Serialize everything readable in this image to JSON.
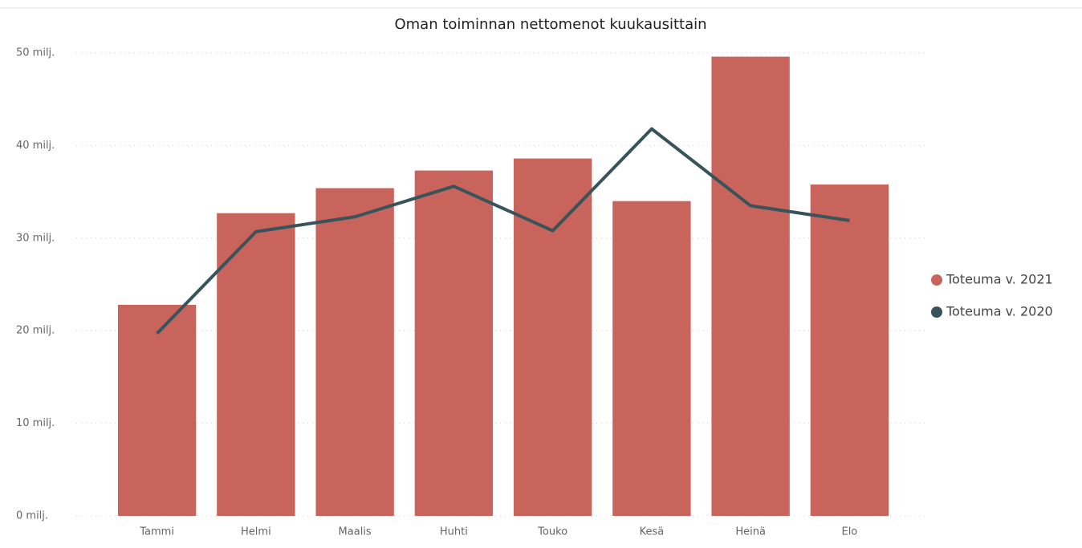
{
  "chart_data": {
    "type": "bar",
    "title": "Oman toiminnan nettomenot kuukausittain",
    "categories": [
      "Tammi",
      "Helmi",
      "Maalis",
      "Huhti",
      "Touko",
      "Kesä",
      "Heinä",
      "Elo"
    ],
    "series": [
      {
        "name": "Toteuma v. 2021",
        "type": "bar",
        "color": "#c8645c",
        "values": [
          22.8,
          32.7,
          35.4,
          37.3,
          38.6,
          34.0,
          49.6,
          35.8
        ]
      },
      {
        "name": "Toteuma v. 2020",
        "type": "line",
        "color": "#37545a",
        "values": [
          19.7,
          30.7,
          32.3,
          35.6,
          30.8,
          41.8,
          33.5,
          31.9
        ]
      }
    ],
    "ylim": [
      0,
      50
    ],
    "yticks": [
      {
        "value": 0,
        "label": "0 milj."
      },
      {
        "value": 10,
        "label": "10 milj."
      },
      {
        "value": 20,
        "label": "20 milj."
      },
      {
        "value": 30,
        "label": "30 milj."
      },
      {
        "value": 40,
        "label": "40 milj."
      },
      {
        "value": 50,
        "label": "50 milj."
      }
    ],
    "grid": true,
    "legend": "right"
  }
}
